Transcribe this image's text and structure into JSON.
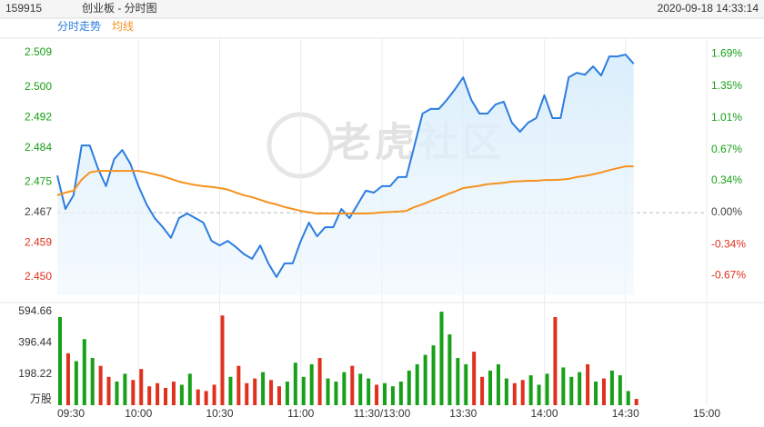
{
  "header": {
    "code": "159915",
    "name": "创业板 - 分时图",
    "timestamp": "2020-09-18 14:33:14"
  },
  "chart_data": {
    "type": "line",
    "watermark": "老虎社区",
    "x": [
      0,
      3,
      6,
      9,
      12,
      15,
      18,
      21,
      24,
      27,
      30,
      33,
      36,
      39,
      42,
      45,
      48,
      51,
      54,
      57,
      60,
      63,
      66,
      69,
      72,
      75,
      78,
      81,
      84,
      87,
      90,
      93,
      96,
      99,
      102,
      105,
      108,
      111,
      114,
      117,
      120,
      123,
      126,
      129,
      132,
      135,
      138,
      141,
      144,
      147,
      150,
      153,
      156,
      159,
      162,
      165,
      168,
      171,
      174,
      177,
      180,
      183,
      186,
      189,
      192,
      195,
      198,
      201,
      204,
      207,
      210,
      213
    ],
    "xlim": [
      0,
      240
    ],
    "xticks": [
      {
        "value": 0,
        "label": "09:30"
      },
      {
        "value": 30,
        "label": "10:00"
      },
      {
        "value": 60,
        "label": "10:30"
      },
      {
        "value": 90,
        "label": "11:00"
      },
      {
        "value": 120,
        "label": "11:30/13:00"
      },
      {
        "value": 150,
        "label": "13:30"
      },
      {
        "value": 180,
        "label": "14:00"
      },
      {
        "value": 210,
        "label": "14:30"
      },
      {
        "value": 240,
        "label": "15:00"
      }
    ],
    "series": [
      {
        "name": "分时走势",
        "color": "#2b7de0",
        "fill": true,
        "values": [
          2.4767,
          2.4679,
          2.4715,
          2.4846,
          2.4846,
          2.4786,
          2.4739,
          2.481,
          2.4834,
          2.4798,
          2.4739,
          2.4691,
          2.4655,
          2.4631,
          2.4603,
          2.4655,
          2.4667,
          2.4655,
          2.4643,
          2.4595,
          2.4583,
          2.4595,
          2.4579,
          2.456,
          2.4548,
          2.4583,
          2.4536,
          2.45,
          2.4536,
          2.4536,
          2.4595,
          2.4643,
          2.4607,
          2.4631,
          2.4631,
          2.4679,
          2.4655,
          2.4691,
          2.4727,
          2.4722,
          2.4739,
          2.4739,
          2.4763,
          2.4763,
          2.4846,
          2.493,
          2.4942,
          2.4942,
          2.4966,
          2.4994,
          2.5025,
          2.4966,
          2.493,
          2.493,
          2.4954,
          2.4961,
          2.4906,
          2.4882,
          2.4906,
          2.4918,
          2.4978,
          2.4918,
          2.4918,
          2.5025,
          2.5037,
          2.5032,
          2.5054,
          2.503,
          2.508,
          2.508,
          2.5085,
          2.5061
        ]
      },
      {
        "name": "均线",
        "color": "#f5921e",
        "fill": false,
        "values": [
          2.4715,
          2.4722,
          2.4727,
          2.4756,
          2.4775,
          2.4779,
          2.4779,
          2.4779,
          2.4779,
          2.4779,
          2.4779,
          2.4775,
          2.477,
          2.4765,
          2.4758,
          2.4751,
          2.4746,
          2.4742,
          2.4739,
          2.4737,
          2.4734,
          2.473,
          2.4722,
          2.4715,
          2.471,
          2.4703,
          2.4696,
          2.4691,
          2.4684,
          2.4679,
          2.4674,
          2.467,
          2.4667,
          2.4667,
          2.4667,
          2.4667,
          2.4667,
          2.4667,
          2.4667,
          2.4668,
          2.467,
          2.4671,
          2.4672,
          2.4674,
          2.4684,
          2.4691,
          2.47,
          2.4708,
          2.4717,
          2.4725,
          2.4734,
          2.4737,
          2.474,
          2.4744,
          2.4746,
          2.4748,
          2.4751,
          2.4752,
          2.4753,
          2.4753,
          2.4755,
          2.4755,
          2.4756,
          2.4758,
          2.4763,
          2.4766,
          2.477,
          2.4775,
          2.4781,
          2.4786,
          2.4791,
          2.4791
        ]
      }
    ],
    "ylim": [
      2.4452,
      2.5121
    ],
    "yticks": [
      {
        "value": 2.45,
        "label": "2.450"
      },
      2.459,
      2.467,
      2.475,
      2.484,
      2.492,
      {
        "value": 2.5,
        "label": "2.500"
      },
      2.509
    ],
    "y2lim": [
      -0.88,
      1.83
    ],
    "y2ticks": [
      {
        "value": -0.67,
        "label": "-0.67%"
      },
      {
        "value": -0.34,
        "label": "-0.34%"
      },
      {
        "value": 0,
        "label": "0.00%"
      },
      {
        "value": 0.34,
        "label": "0.34%"
      },
      {
        "value": 0.67,
        "label": "0.67%"
      },
      {
        "value": 1.01,
        "label": "1.01%"
      },
      {
        "value": 1.35,
        "label": "1.35%"
      },
      {
        "value": 1.69,
        "label": "1.69%"
      }
    ],
    "up_color": "#18a018",
    "down_color": "#e0301e",
    "flat_color": "#444444",
    "grid": true,
    "volume": {
      "unit": "万股",
      "ylim": [
        0,
        594.66
      ],
      "yticks": [
        198.22,
        396.44,
        594.66
      ],
      "values": [
        560,
        330,
        280,
        420,
        300,
        250,
        180,
        150,
        200,
        160,
        230,
        120,
        140,
        110,
        150,
        130,
        200,
        100,
        90,
        130,
        570,
        180,
        250,
        140,
        170,
        210,
        160,
        120,
        150,
        270,
        180,
        260,
        300,
        170,
        150,
        210,
        250,
        200,
        170,
        130,
        140,
        120,
        150,
        220,
        260,
        320,
        380,
        594,
        450,
        300,
        260,
        340,
        180,
        220,
        260,
        170,
        140,
        160,
        190,
        130,
        200,
        560,
        240,
        180,
        210,
        260,
        150,
        170,
        220,
        190,
        90,
        40
      ]
    }
  }
}
